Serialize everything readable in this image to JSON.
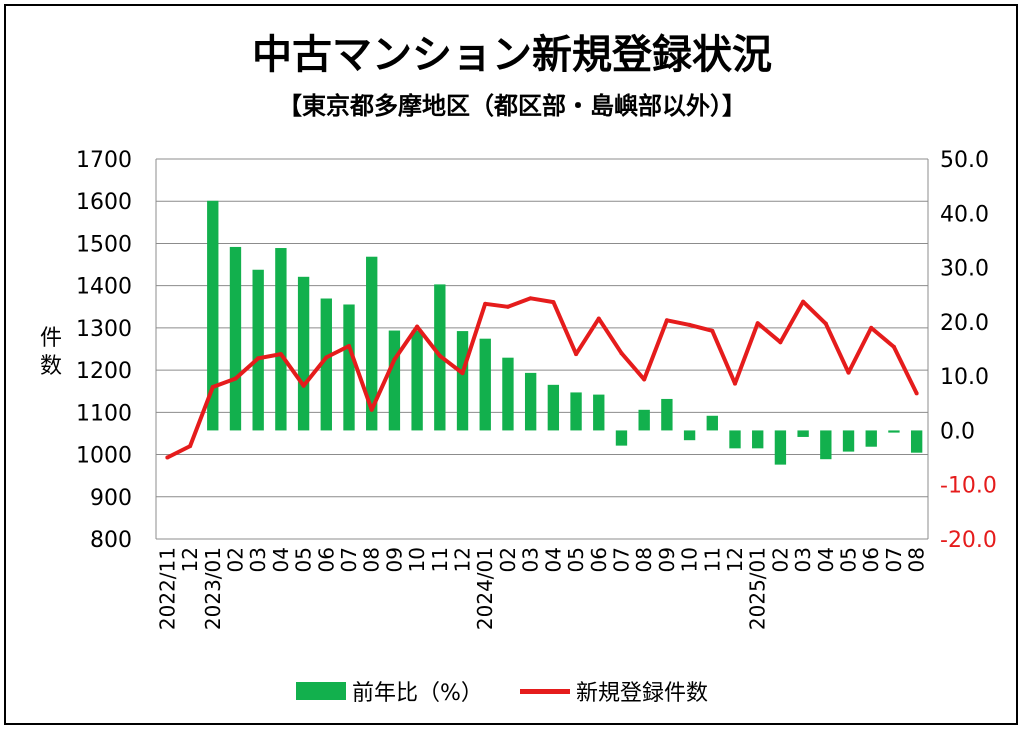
{
  "title": "中古マンション新規登録状況",
  "subtitle": "【東京都多摩地区（都区部・島嶼部以外）】",
  "colors": {
    "bar": "#12b04d",
    "line": "#e51c1c",
    "grid": "#8c8c8c",
    "right_axis_text": "#e51c1c"
  },
  "chart_data": {
    "type": "bar+line",
    "left_axis": {
      "label": "件数",
      "min": 800,
      "max": 1700,
      "ticks": [
        "1700",
        "1600",
        "1500",
        "1400",
        "1300",
        "1200",
        "1100",
        "1000",
        "900",
        "800"
      ]
    },
    "right_axis": {
      "min": -20,
      "max": 50,
      "ticks": [
        "50.0",
        "40.0",
        "30.0",
        "20.0",
        "10.0",
        "0.0",
        "-10.0",
        "-20.0"
      ]
    },
    "x_labels": [
      "2022/11",
      "12",
      "2023/01",
      "02",
      "03",
      "04",
      "05",
      "06",
      "07",
      "08",
      "09",
      "10",
      "11",
      "12",
      "2024/01",
      "02",
      "03",
      "04",
      "05",
      "06",
      "07",
      "08",
      "09",
      "10",
      "11",
      "12",
      "2025/01",
      "02",
      "03",
      "04",
      "05",
      "06",
      "07",
      "08"
    ],
    "series": [
      {
        "name": "前年比（%）",
        "kind": "bar",
        "axis": "right",
        "values": [
          null,
          null,
          42.3,
          33.8,
          29.6,
          33.6,
          28.3,
          24.3,
          23.2,
          32.0,
          18.4,
          18.4,
          26.9,
          18.3,
          16.9,
          13.4,
          10.6,
          8.4,
          7.0,
          6.6,
          -2.8,
          3.8,
          5.8,
          -1.8,
          2.7,
          -3.3,
          -3.3,
          -6.3,
          -1.2,
          -5.3,
          -3.9,
          -3.0,
          -0.4,
          -4.1
        ]
      },
      {
        "name": "新規登録件数",
        "kind": "line",
        "axis": "left",
        "values": [
          993,
          1020,
          1160,
          1180,
          1228,
          1238,
          1163,
          1230,
          1257,
          1106,
          1225,
          1303,
          1234,
          1193,
          1357,
          1350,
          1370,
          1361,
          1238,
          1322,
          1240,
          1178,
          1318,
          1307,
          1293,
          1168,
          1311,
          1266,
          1362,
          1310,
          1194,
          1300,
          1255,
          1145
        ]
      }
    ],
    "legend_position": "bottom",
    "grid": true
  }
}
